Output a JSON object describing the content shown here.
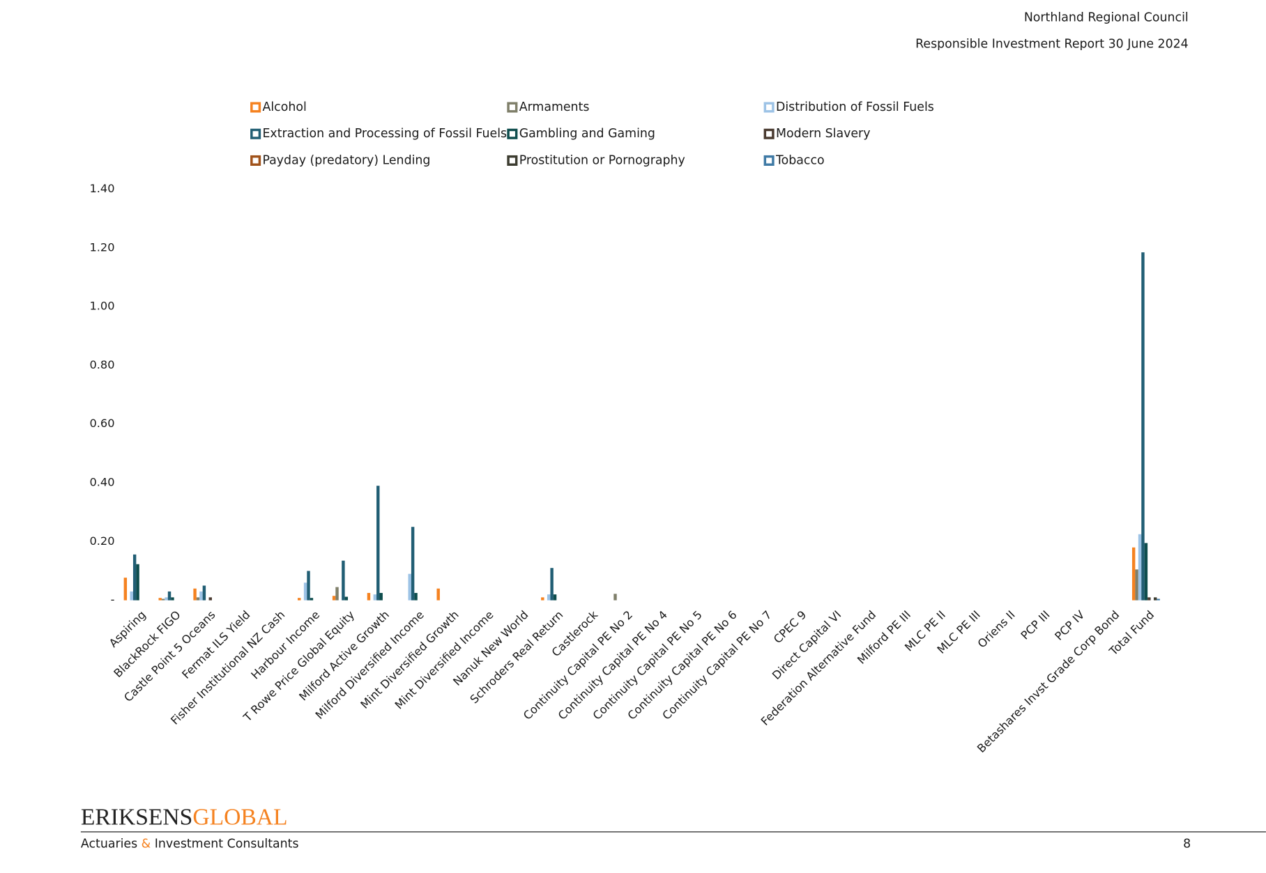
{
  "header": {
    "organisation": "Northland Regional Council",
    "report": "Responsible Investment Report 30 June 2024"
  },
  "chart_data": {
    "type": "bar",
    "categories": [
      "Aspiring",
      "BlackRock FIGO",
      "Castle Point 5 Oceans",
      "Fermat ILS Yield",
      "Fisher Institutional NZ Cash",
      "Harbour Income",
      "T Rowe Price Global Equity",
      "Milford Active Growth",
      "Milford Diversified Income",
      "Mint Diversified Growth",
      "Mint Diversified Income",
      "Nanuk New World",
      "Schroders Real Return",
      "Castlerock",
      "Continuity Capital PE No 2",
      "Continuity Capital PE No 4",
      "Continuity Capital PE No 5",
      "Continuity Capital PE No 6",
      "Continuity Capital PE No 7",
      "CPEC 9",
      "Direct Capital VI",
      "Federation Alternative Fund",
      "Milford PE III",
      "MLC PE II",
      "MLC PE III",
      "Oriens II",
      "PCP III",
      "PCP IV",
      "Betashares Invst Grade Corp Bond",
      "Total Fund"
    ],
    "series": [
      {
        "name": "Alcohol",
        "color": "#f58220",
        "values": [
          0.077,
          0.008,
          0.04,
          0,
          0,
          0.008,
          0.015,
          0.025,
          0,
          0.04,
          0,
          0,
          0.01,
          0,
          0,
          0,
          0,
          0,
          0,
          0,
          0,
          0,
          0,
          0,
          0,
          0,
          0,
          0,
          0,
          0.18
        ]
      },
      {
        "name": "Armaments",
        "color": "#7f7f6a",
        "values": [
          0,
          0.005,
          0.01,
          0,
          0,
          0,
          0.045,
          0,
          0,
          0,
          0,
          0,
          0,
          0,
          0.022,
          0,
          0,
          0,
          0,
          0,
          0,
          0,
          0,
          0,
          0,
          0,
          0,
          0,
          0,
          0.105
        ]
      },
      {
        "name": "Distribution of Fossil Fuels",
        "color": "#9dc3e6",
        "values": [
          0.03,
          0.01,
          0.03,
          0,
          0,
          0.06,
          0,
          0.02,
          0.09,
          0,
          0,
          0,
          0.02,
          0,
          0,
          0,
          0,
          0,
          0,
          0,
          0,
          0,
          0,
          0,
          0,
          0,
          0,
          0,
          0,
          0.225
        ]
      },
      {
        "name": "Extraction and Processing of Fossil Fuels",
        "color": "#215e74",
        "values": [
          0.156,
          0.03,
          0.05,
          0,
          0,
          0.1,
          0.135,
          0.39,
          0.25,
          0,
          0,
          0,
          0.11,
          0,
          0,
          0,
          0,
          0,
          0,
          0,
          0,
          0,
          0,
          0,
          0,
          0,
          0,
          0,
          0,
          1.185
        ]
      },
      {
        "name": "Gambling and Gaming",
        "color": "#0e4d4d",
        "values": [
          0.123,
          0.01,
          0,
          0,
          0,
          0.008,
          0.012,
          0.025,
          0.025,
          0,
          0,
          0,
          0.02,
          0,
          0,
          0,
          0,
          0,
          0,
          0,
          0,
          0,
          0,
          0,
          0,
          0,
          0,
          0,
          0,
          0.195
        ]
      },
      {
        "name": "Modern Slavery",
        "color": "#4a3b30",
        "values": [
          0,
          0,
          0.01,
          0,
          0,
          0,
          0,
          0,
          0,
          0,
          0,
          0,
          0,
          0,
          0,
          0,
          0,
          0,
          0,
          0,
          0,
          0,
          0,
          0,
          0,
          0,
          0,
          0,
          0,
          0.01
        ]
      },
      {
        "name": "Payday (predatory) Lending",
        "color": "#a0521a",
        "values": [
          0,
          0,
          0,
          0,
          0,
          0,
          0,
          0,
          0,
          0,
          0,
          0,
          0,
          0,
          0,
          0,
          0,
          0,
          0,
          0,
          0,
          0,
          0,
          0,
          0,
          0,
          0,
          0,
          0,
          0
        ]
      },
      {
        "name": "Prostitution or Pornography",
        "color": "#3c3c30",
        "values": [
          0,
          0,
          0,
          0,
          0,
          0,
          0,
          0,
          0,
          0,
          0,
          0,
          0,
          0,
          0,
          0,
          0,
          0,
          0,
          0,
          0,
          0,
          0,
          0,
          0,
          0,
          0,
          0,
          0,
          0.01
        ]
      },
      {
        "name": "Tobacco",
        "color": "#3f7aa5",
        "values": [
          0,
          0,
          0,
          0,
          0,
          0,
          0,
          0,
          0,
          0,
          0,
          0,
          0,
          0,
          0,
          0,
          0,
          0,
          0,
          0,
          0,
          0,
          0,
          0,
          0,
          0,
          0,
          0,
          0,
          0.005
        ]
      }
    ],
    "ylim": [
      0,
      1.4
    ],
    "yticks": [
      {
        "value": 0,
        "label": "-"
      },
      {
        "value": 0.2,
        "label": "0.20"
      },
      {
        "value": 0.4,
        "label": "0.40"
      },
      {
        "value": 0.6,
        "label": "0.60"
      },
      {
        "value": 0.8,
        "label": "0.80"
      },
      {
        "value": 1.0,
        "label": "1.00"
      },
      {
        "value": 1.2,
        "label": "1.20"
      },
      {
        "value": 1.4,
        "label": "1.40"
      }
    ],
    "legend": "top"
  },
  "footer": {
    "brand": [
      "ERIKSENS",
      "GLOBAL"
    ],
    "tagline": [
      "Actuaries",
      "&",
      "Investment Consultants"
    ],
    "page": "8"
  }
}
